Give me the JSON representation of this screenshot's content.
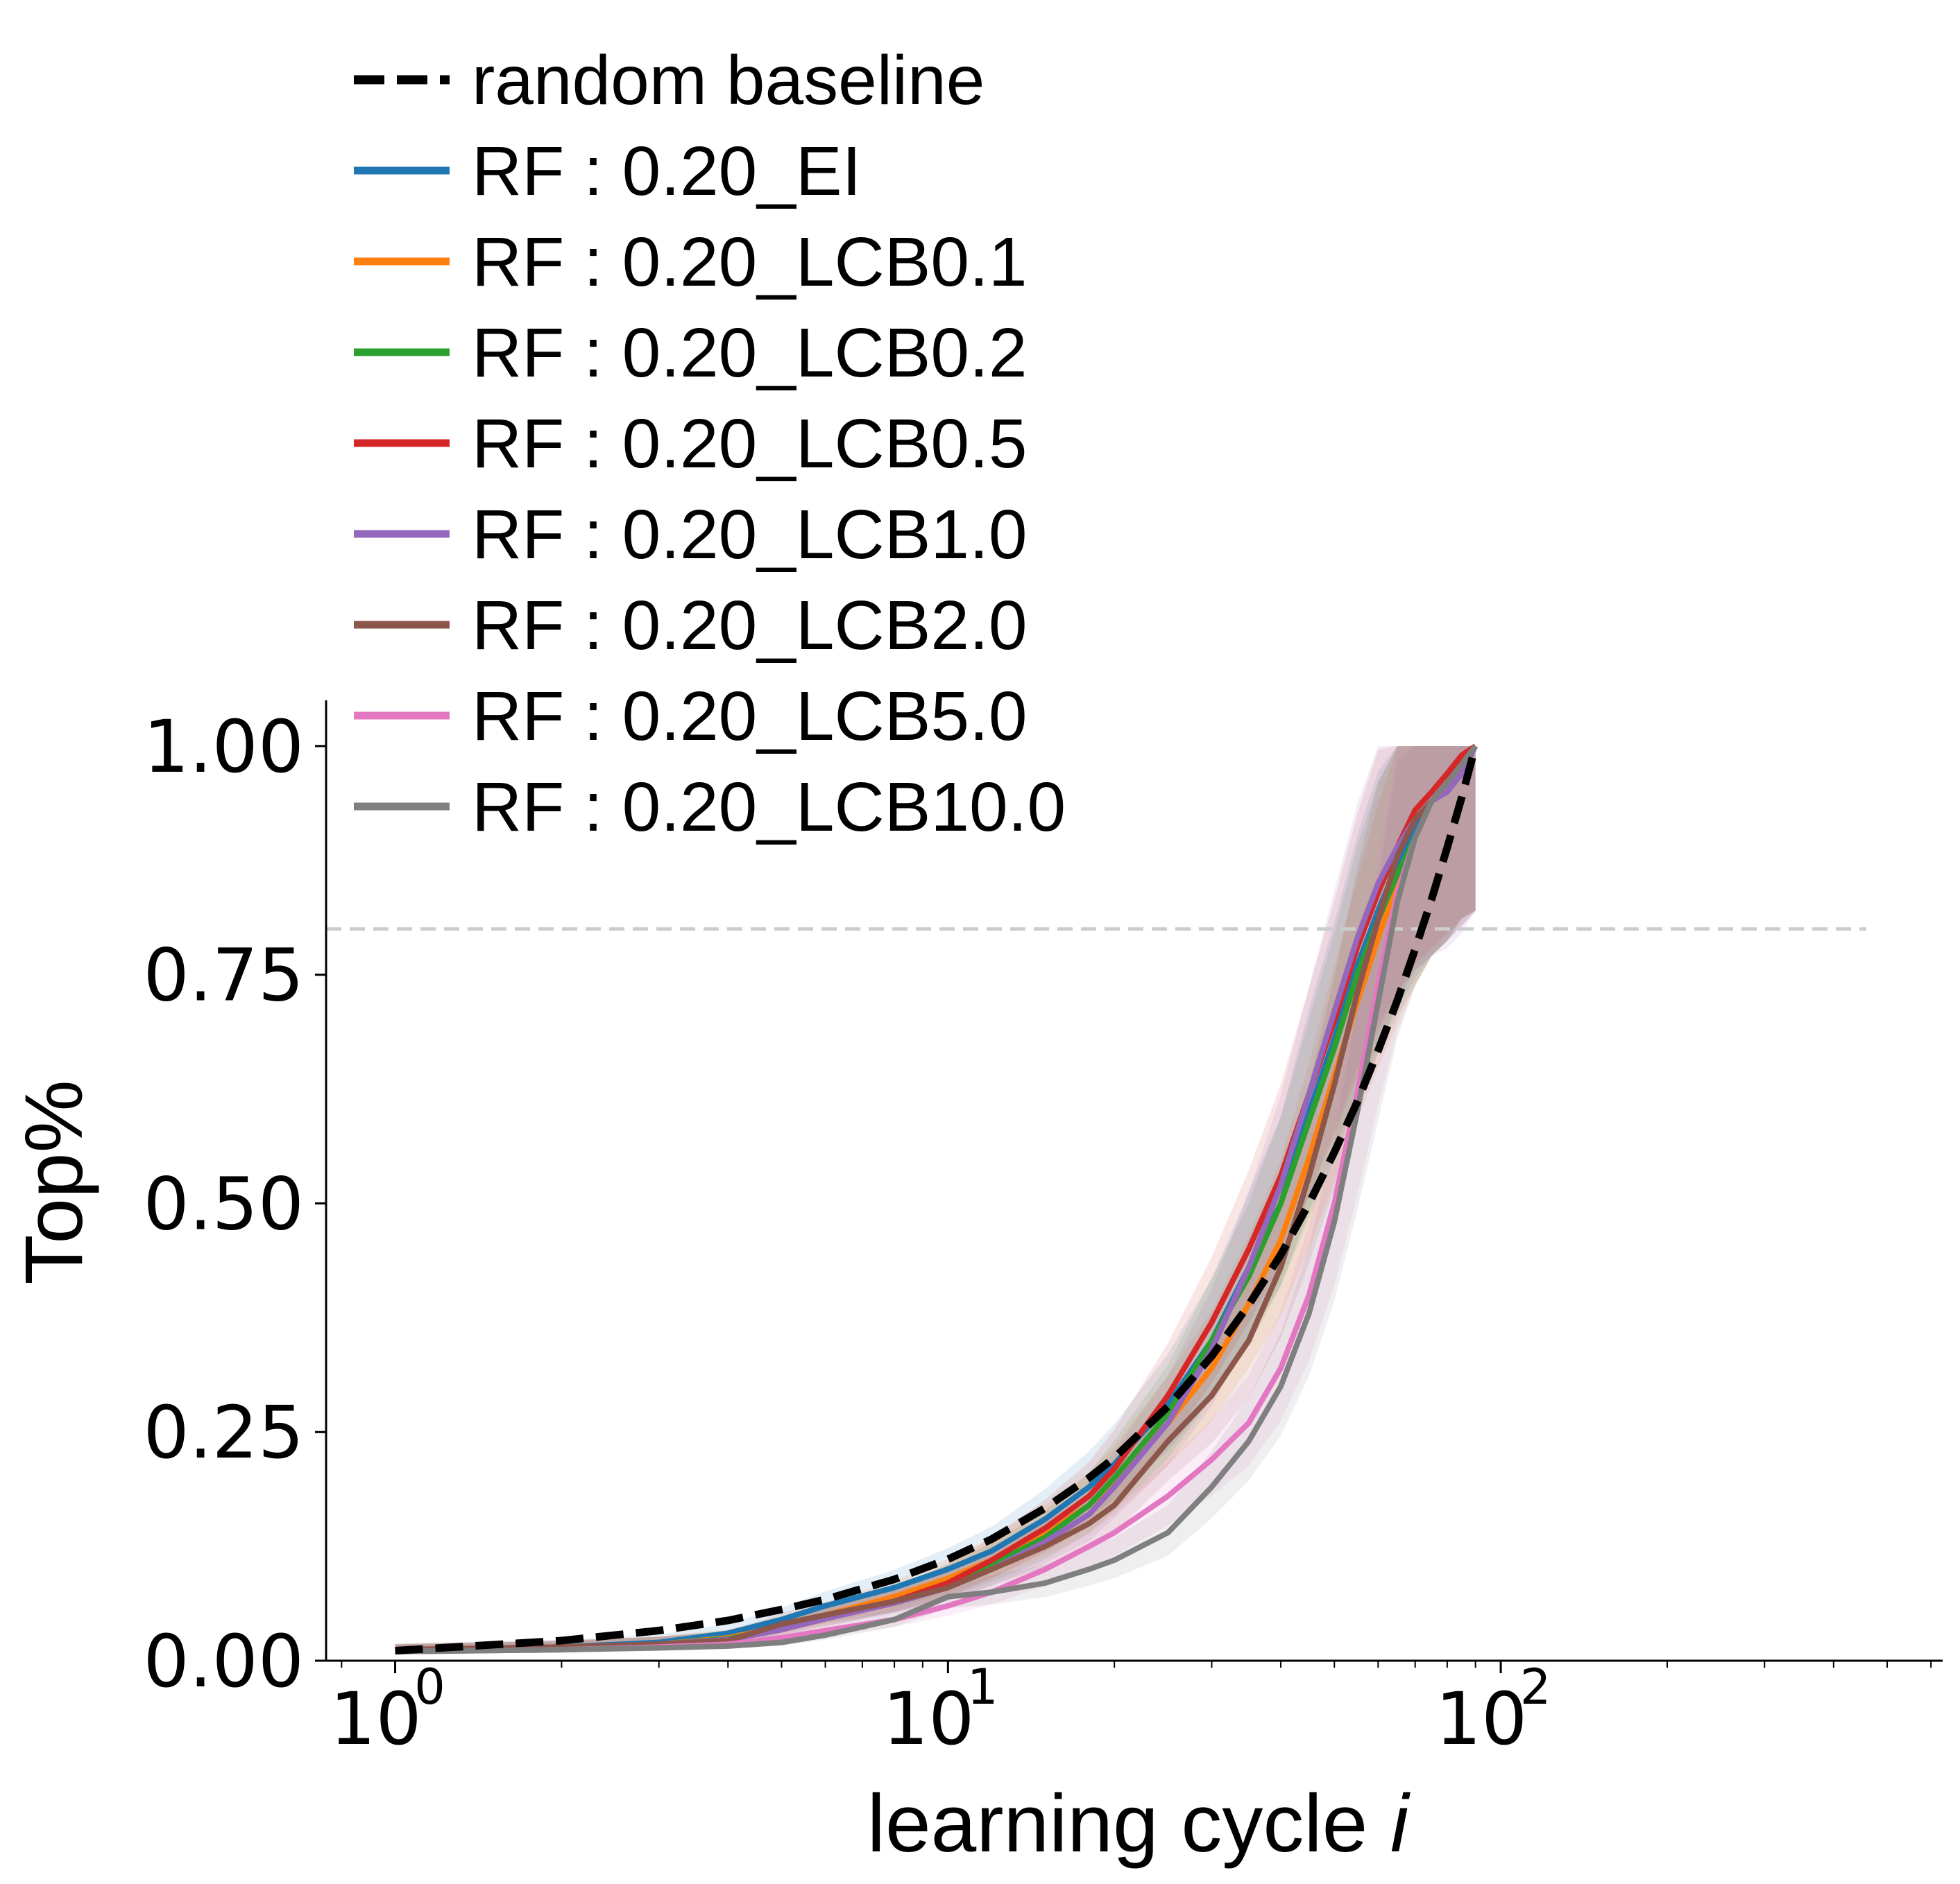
{
  "chart_data": {
    "type": "line",
    "xlabel": "learning cycle",
    "xlabel_var": "i",
    "ylabel": "Top%",
    "x_scale": "log",
    "xlim": [
      0.75,
      630
    ],
    "ylim": [
      0,
      1.05
    ],
    "y_ticks": [
      "0.00",
      "0.25",
      "0.50",
      "0.75",
      "1.00"
    ],
    "x_ticks": [
      {
        "base": "10",
        "exp": "0",
        "value": 1
      },
      {
        "base": "10",
        "exp": "1",
        "value": 10
      },
      {
        "base": "10",
        "exp": "2",
        "value": 100
      }
    ],
    "reference_line": {
      "y": 0.8,
      "color": "#cccccc",
      "style": "dashed"
    },
    "grid": false,
    "legend": {
      "placement": "top-left"
    },
    "x": [
      1,
      2,
      3,
      4,
      5,
      6,
      8,
      10,
      12,
      15,
      18,
      20,
      25,
      30,
      35,
      40,
      45,
      50,
      55,
      60,
      65,
      70,
      75,
      80,
      85,
      90
    ],
    "series": [
      {
        "name": "random baseline",
        "color": "#000000",
        "style": "dashed",
        "values": [
          0.011,
          0.022,
          0.033,
          0.044,
          0.056,
          0.067,
          0.089,
          0.111,
          0.133,
          0.167,
          0.2,
          0.222,
          0.278,
          0.333,
          0.389,
          0.444,
          0.5,
          0.556,
          0.611,
          0.667,
          0.722,
          0.778,
          0.833,
          0.889,
          0.944,
          1.0
        ]
      },
      {
        "name": "RF : 0.20_EI",
        "color": "#1f77b4",
        "style": "solid",
        "values": [
          0.011,
          0.015,
          0.02,
          0.03,
          0.045,
          0.06,
          0.08,
          0.1,
          0.12,
          0.155,
          0.19,
          0.215,
          0.28,
          0.35,
          0.43,
          0.5,
          0.6,
          0.68,
          0.76,
          0.82,
          0.87,
          0.91,
          0.94,
          0.96,
          0.99,
          1.0
        ]
      },
      {
        "name": "RF : 0.20_LCB0.1",
        "color": "#ff7f0e",
        "style": "solid",
        "values": [
          0.011,
          0.014,
          0.018,
          0.025,
          0.037,
          0.05,
          0.07,
          0.09,
          0.11,
          0.14,
          0.17,
          0.195,
          0.26,
          0.32,
          0.39,
          0.46,
          0.55,
          0.64,
          0.72,
          0.79,
          0.85,
          0.9,
          0.94,
          0.96,
          0.99,
          1.0
        ]
      },
      {
        "name": "RF : 0.20_LCB0.2",
        "color": "#2ca02c",
        "style": "solid",
        "values": [
          0.011,
          0.014,
          0.018,
          0.024,
          0.035,
          0.047,
          0.065,
          0.085,
          0.105,
          0.135,
          0.17,
          0.2,
          0.27,
          0.35,
          0.42,
          0.5,
          0.59,
          0.67,
          0.75,
          0.81,
          0.86,
          0.9,
          0.94,
          0.96,
          0.99,
          1.0
        ]
      },
      {
        "name": "RF : 0.20_LCB0.5",
        "color": "#d62728",
        "style": "solid",
        "values": [
          0.011,
          0.014,
          0.018,
          0.023,
          0.034,
          0.046,
          0.065,
          0.085,
          0.11,
          0.145,
          0.18,
          0.21,
          0.29,
          0.37,
          0.45,
          0.53,
          0.62,
          0.7,
          0.78,
          0.84,
          0.89,
          0.93,
          0.95,
          0.97,
          0.99,
          1.0
        ]
      },
      {
        "name": "RF : 0.20_LCB1.0",
        "color": "#9467bd",
        "style": "solid",
        "values": [
          0.011,
          0.014,
          0.018,
          0.023,
          0.034,
          0.046,
          0.063,
          0.08,
          0.1,
          0.13,
          0.16,
          0.19,
          0.26,
          0.34,
          0.43,
          0.52,
          0.62,
          0.71,
          0.79,
          0.85,
          0.89,
          0.92,
          0.94,
          0.95,
          0.97,
          1.0
        ]
      },
      {
        "name": "RF : 0.20_LCB2.0",
        "color": "#8c564b",
        "style": "solid",
        "values": [
          0.012,
          0.015,
          0.018,
          0.022,
          0.04,
          0.05,
          0.065,
          0.08,
          0.1,
          0.125,
          0.15,
          0.17,
          0.24,
          0.29,
          0.35,
          0.43,
          0.53,
          0.63,
          0.73,
          0.81,
          0.88,
          0.92,
          0.94,
          0.96,
          0.98,
          1.0
        ]
      },
      {
        "name": "RF : 0.20_LCB5.0",
        "color": "#e377c2",
        "style": "solid",
        "values": [
          0.01,
          0.012,
          0.015,
          0.018,
          0.025,
          0.033,
          0.045,
          0.06,
          0.075,
          0.1,
          0.125,
          0.14,
          0.18,
          0.22,
          0.26,
          0.32,
          0.4,
          0.5,
          0.62,
          0.74,
          0.84,
          0.9,
          0.94,
          0.96,
          0.98,
          1.0
        ]
      },
      {
        "name": "RF : 0.20_LCB10.0",
        "color": "#7f7f7f",
        "style": "solid",
        "values": [
          0.01,
          0.012,
          0.014,
          0.016,
          0.02,
          0.028,
          0.045,
          0.07,
          0.075,
          0.085,
          0.1,
          0.11,
          0.14,
          0.19,
          0.24,
          0.3,
          0.38,
          0.48,
          0.6,
          0.72,
          0.83,
          0.9,
          0.94,
          0.96,
          0.98,
          1.0
        ]
      }
    ]
  }
}
